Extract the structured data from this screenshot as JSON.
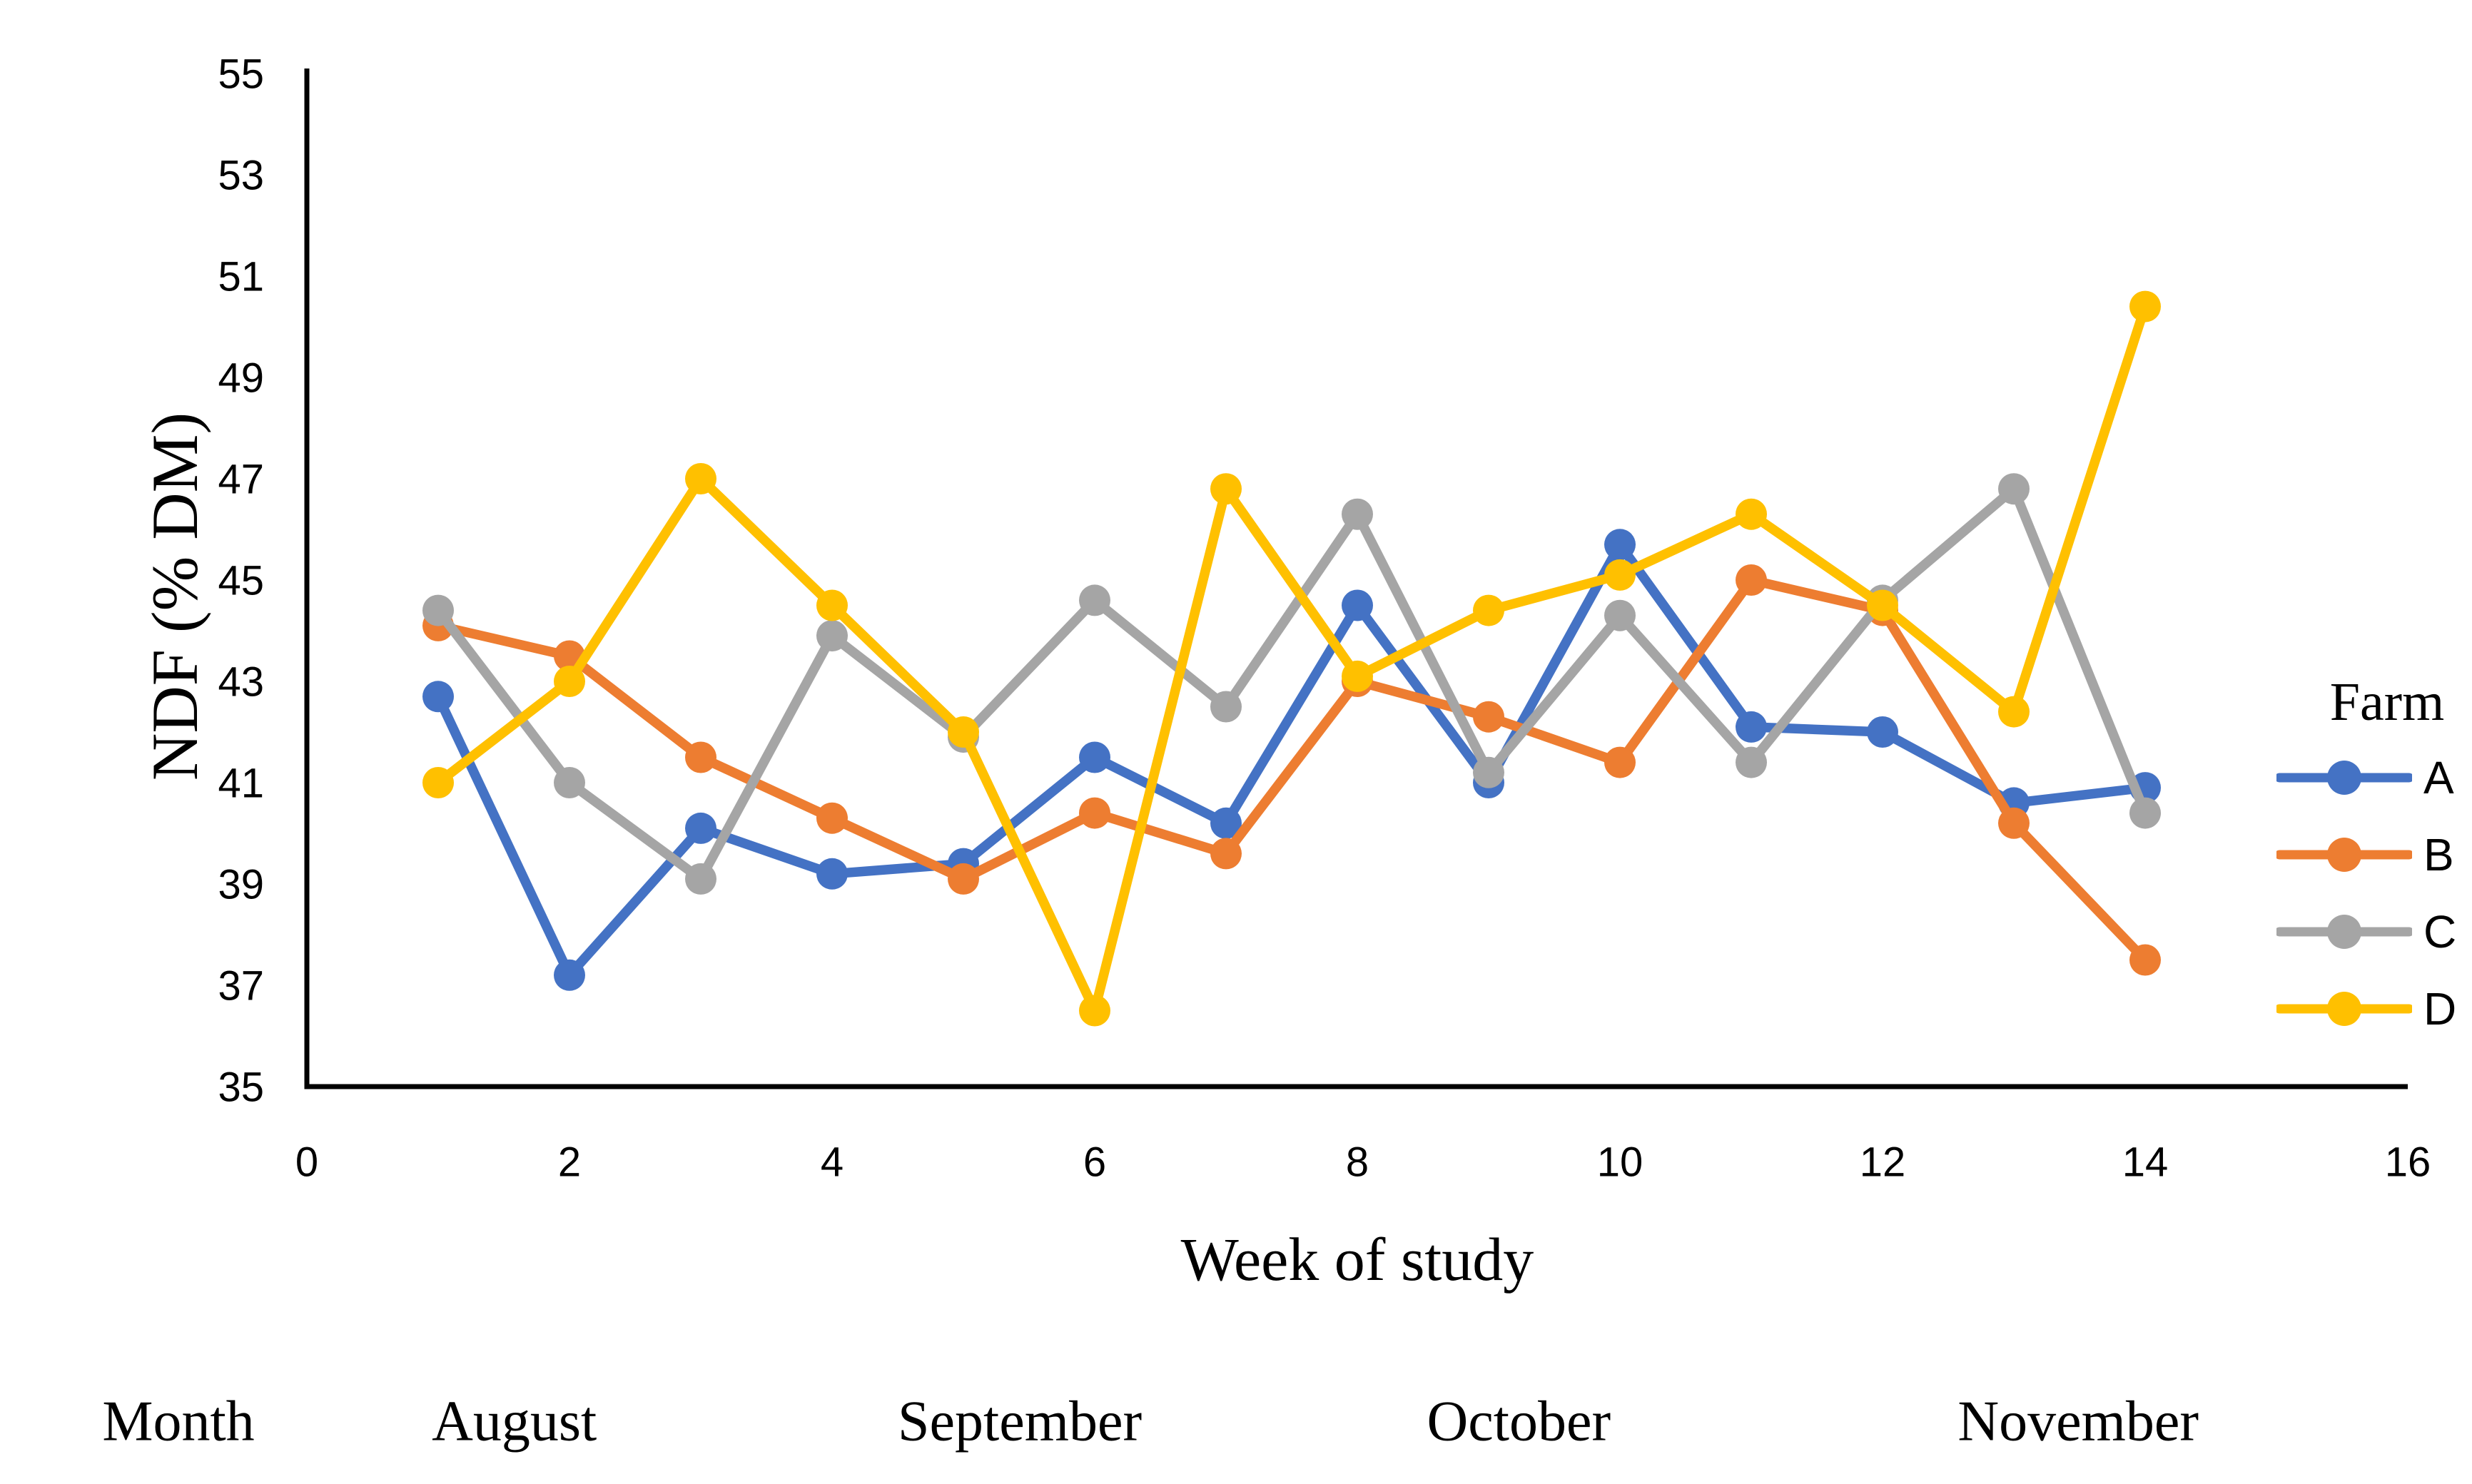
{
  "page": {
    "background": "#ffffff"
  },
  "chart_data": {
    "type": "line",
    "title": "",
    "xlabel": "Week of study",
    "ylabel": "NDF (% DM)",
    "legend_title": "Farm",
    "legend_position": "right",
    "grid": false,
    "xlim": [
      0,
      16
    ],
    "ylim": [
      35,
      55
    ],
    "xtick_step": 2,
    "ytick_step": 2,
    "x": [
      1,
      2,
      3,
      4,
      5,
      6,
      7,
      8,
      9,
      10,
      11,
      12,
      13,
      14
    ],
    "series": [
      {
        "name": "A",
        "color": "#4472C4",
        "values": [
          42.7,
          37.2,
          40.1,
          39.2,
          39.4,
          41.5,
          40.2,
          44.5,
          41.0,
          45.7,
          42.1,
          42.0,
          40.6,
          40.9
        ]
      },
      {
        "name": "B",
        "color": "#ED7D31",
        "values": [
          44.1,
          43.5,
          41.5,
          40.3,
          39.1,
          40.4,
          39.6,
          43.0,
          42.3,
          41.4,
          45.0,
          44.4,
          40.2,
          37.5
        ]
      },
      {
        "name": "C",
        "color": "#A5A5A5",
        "values": [
          44.4,
          41.0,
          39.1,
          43.9,
          41.9,
          44.6,
          42.5,
          46.3,
          41.2,
          44.3,
          41.4,
          44.6,
          46.8,
          40.4
        ]
      },
      {
        "name": "D",
        "color": "#FFC000",
        "values": [
          41.0,
          43.0,
          47.0,
          44.5,
          42.0,
          36.5,
          46.8,
          43.1,
          44.4,
          45.1,
          46.3,
          44.5,
          42.4,
          50.4
        ]
      }
    ],
    "month_axis": {
      "header": "Month",
      "months": [
        {
          "label": "August",
          "week_center": 1.58
        },
        {
          "label": "September",
          "week_center": 5.43
        },
        {
          "label": "October",
          "week_center": 9.23
        },
        {
          "label": "November",
          "week_center": 13.49
        }
      ]
    },
    "axis_color": "#000000"
  }
}
